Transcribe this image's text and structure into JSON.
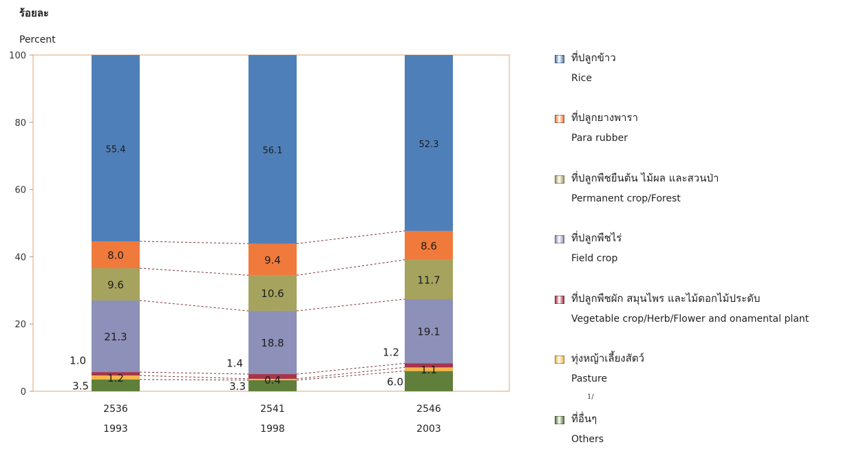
{
  "y_unit_thai": "ร้อยละ",
  "y_unit_en": "Percent",
  "footnote_mark": "1/",
  "chart_data": {
    "type": "bar",
    "stacked": true,
    "categories": [
      "2536",
      "2541",
      "2546"
    ],
    "category_subtitles": [
      "1993",
      "1998",
      "2003"
    ],
    "ylim": [
      0,
      100
    ],
    "yticks": [
      0,
      20,
      40,
      60,
      80,
      100
    ],
    "series": [
      {
        "name": "ที่อื่นๆ",
        "name_en": "Others",
        "color": "#5f7f3a",
        "values": [
          3.5,
          3.3,
          6.0
        ]
      },
      {
        "name": "ทุ่งหญ้าเลี้ยงสัตว์",
        "name_en": "Pasture",
        "color": "#f2b64a",
        "values": [
          1.2,
          0.4,
          1.1
        ]
      },
      {
        "name": "ที่ปลูกพืชผัก สมุนไพร และไม้ดอกไม้ประดับ",
        "name_en": "Vegetable crop/Herb/Flower and onamental plant",
        "color": "#a8344b",
        "values": [
          1.0,
          1.4,
          1.2
        ]
      },
      {
        "name": "ที่ปลูกพืชไร่",
        "name_en": "Field crop",
        "color": "#8d90b8",
        "values": [
          21.3,
          18.8,
          19.1
        ]
      },
      {
        "name": "ที่ปลูกพืชยืนต้น ไม้ผล และสวนป่า",
        "name_en": "Permanent crop/Forest",
        "color": "#a6a35e",
        "values": [
          9.6,
          10.6,
          11.7
        ]
      },
      {
        "name": "ที่ปลูกยางพารา",
        "name_en": "Para rubber",
        "color": "#f07a3c",
        "values": [
          8.0,
          9.4,
          8.6
        ]
      },
      {
        "name": "ที่ปลูกข้าว",
        "name_en": "Rice",
        "color": "#4f7fb8",
        "values": [
          55.4,
          56.1,
          52.3
        ]
      }
    ],
    "legend_order": [
      6,
      5,
      4,
      3,
      2,
      1,
      0
    ],
    "legend_position": "right"
  }
}
